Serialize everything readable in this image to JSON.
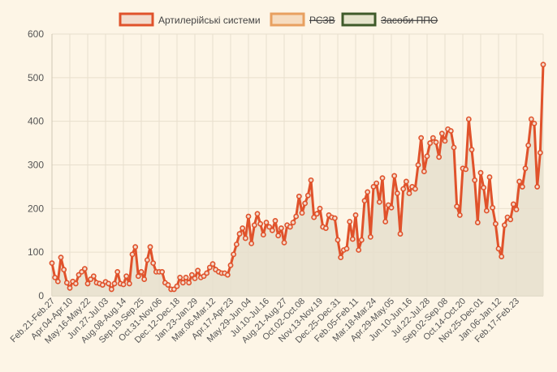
{
  "chart_data": {
    "type": "line",
    "title": "",
    "xlabel": "",
    "ylabel": "",
    "ylim": [
      0,
      600
    ],
    "yticks": [
      0,
      100,
      200,
      300,
      400,
      500,
      600
    ],
    "grid": true,
    "legend_position": "top-center",
    "legend": [
      {
        "name": "Артилерійські системи",
        "visible": true,
        "fill": "#f2dccd",
        "border": "#e0522b"
      },
      {
        "name": "РСЗВ",
        "visible": false,
        "fill": "#f6dcc0",
        "border": "#e8a060"
      },
      {
        "name": "Засоби ППО",
        "visible": false,
        "fill": "#e6e4cc",
        "border": "#3f5a2a"
      }
    ],
    "tick_labels": [
      {
        "label": "Feb.21-Feb.27",
        "index": 0
      },
      {
        "label": "Apr.04-Apr.10",
        "index": 6
      },
      {
        "label": "May.16-May.22",
        "index": 12
      },
      {
        "label": "Jun.27-Jul.03",
        "index": 18
      },
      {
        "label": "Aug.08-Aug.14",
        "index": 24
      },
      {
        "label": "Sep.19-Sep.25",
        "index": 30
      },
      {
        "label": "Oct.31-Nov.06",
        "index": 36
      },
      {
        "label": "Dec.12-Dec.18",
        "index": 42
      },
      {
        "label": "Jan.23-Jan.29",
        "index": 48
      },
      {
        "label": "Mar.06-Mar.12",
        "index": 54
      },
      {
        "label": "Apr.17-Apr.23",
        "index": 60
      },
      {
        "label": "May.29-Jun.04",
        "index": 66
      },
      {
        "label": "Jul.10-Jul.16",
        "index": 72
      },
      {
        "label": "Aug.21-Aug.27",
        "index": 78
      },
      {
        "label": "Oct.02-Oct.08",
        "index": 84
      },
      {
        "label": "Nov.13-Nov.19",
        "index": 90
      },
      {
        "label": "Dec.25-Dec.31",
        "index": 96
      },
      {
        "label": "Feb.05-Feb.11",
        "index": 102
      },
      {
        "label": "Mar.18-Mar.24",
        "index": 108
      },
      {
        "label": "Apr.29-May.05",
        "index": 114
      },
      {
        "label": "Jun.10-Jun.16",
        "index": 120
      },
      {
        "label": "Jul.22-Jul.28",
        "index": 126
      },
      {
        "label": "Sep.02-Sep.08",
        "index": 132
      },
      {
        "label": "Oct.14-Oct.20",
        "index": 138
      },
      {
        "label": "Nov.25-Dec.01",
        "index": 144
      },
      {
        "label": "Jan.06-Jan.12",
        "index": 150
      },
      {
        "label": "Feb.17-Feb.23",
        "index": 156
      }
    ],
    "series": [
      {
        "name": "Артилерійські системи",
        "color": "#e0522b",
        "area_color": "#e6dfcc",
        "values": [
          75,
          42,
          33,
          88,
          60,
          30,
          18,
          33,
          28,
          48,
          55,
          62,
          28,
          38,
          45,
          30,
          28,
          25,
          32,
          28,
          15,
          28,
          55,
          28,
          26,
          45,
          28,
          95,
          112,
          45,
          55,
          38,
          82,
          112,
          75,
          55,
          55,
          55,
          30,
          25,
          15,
          15,
          22,
          42,
          30,
          42,
          30,
          48,
          40,
          58,
          42,
          45,
          52,
          65,
          73,
          60,
          55,
          52,
          52,
          48,
          70,
          95,
          118,
          142,
          155,
          132,
          182,
          120,
          162,
          188,
          165,
          140,
          168,
          158,
          150,
          172,
          138,
          155,
          122,
          162,
          158,
          168,
          182,
          228,
          190,
          212,
          230,
          265,
          180,
          188,
          200,
          158,
          155,
          185,
          180,
          178,
          128,
          88,
          105,
          108,
          170,
          130,
          185,
          105,
          128,
          218,
          238,
          135,
          250,
          258,
          215,
          270,
          170,
          208,
          202,
          275,
          235,
          142,
          245,
          262,
          235,
          250,
          245,
          300,
          362,
          285,
          320,
          350,
          362,
          352,
          318,
          372,
          355,
          382,
          378,
          340,
          205,
          185,
          292,
          290,
          405,
          335,
          265,
          168,
          282,
          248,
          195,
          272,
          202,
          165,
          108,
          90,
          162,
          180,
          175,
          210,
          198,
          262,
          250,
          292,
          345,
          405,
          395,
          250,
          328,
          530
        ]
      }
    ]
  }
}
